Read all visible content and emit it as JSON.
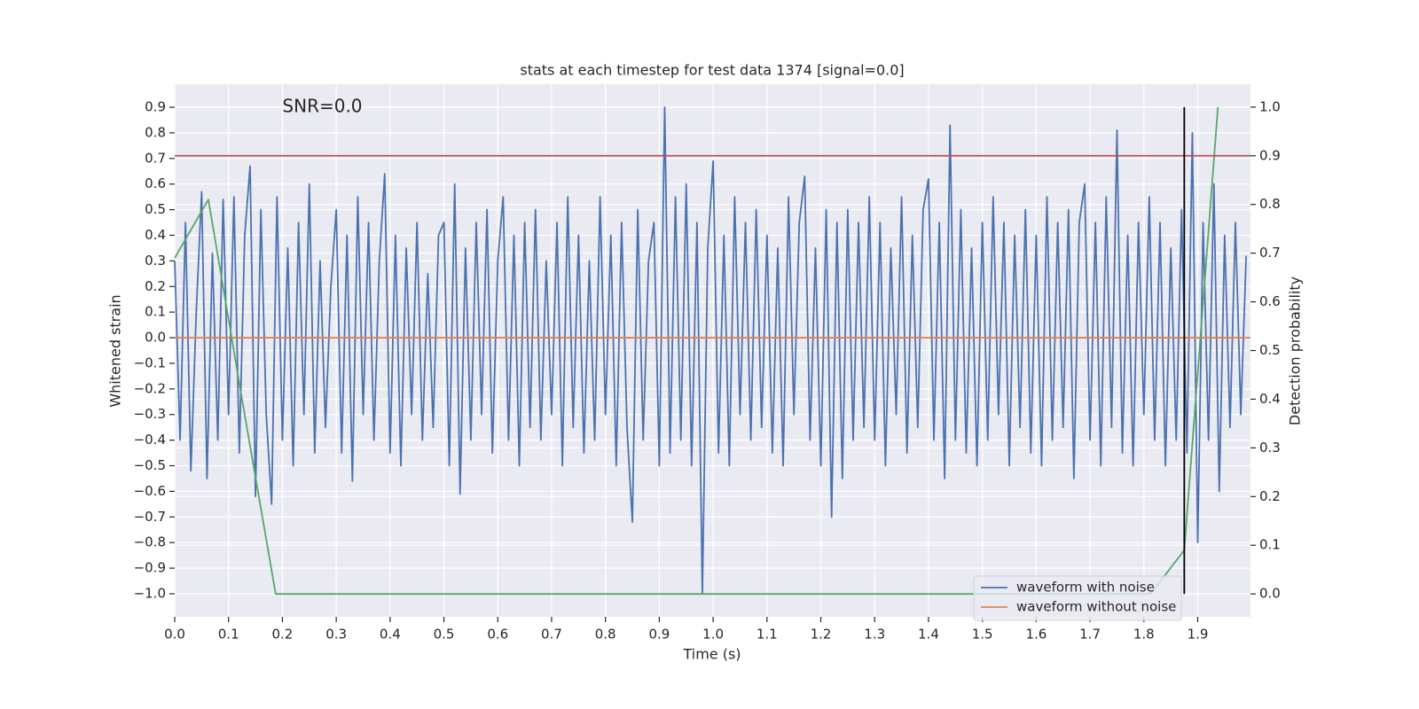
{
  "chart_data": {
    "type": "line",
    "title": "stats at each timestep for test data 1374 [signal=0.0]",
    "xlabel": "Time (s)",
    "ylabel": "Whitened strain",
    "y2label": "Detection probability",
    "annotations": [
      {
        "text": "SNR=0.0",
        "x": 0.2,
        "y": 0.9
      }
    ],
    "xlim": [
      0,
      1.998
    ],
    "ylim": [
      -1.09,
      0.99
    ],
    "y2lim": [
      -0.047,
      1.047
    ],
    "xticks": [
      {
        "value": 0,
        "label": "0.0"
      },
      0.1,
      0.2,
      0.3,
      0.4,
      0.5,
      0.6,
      0.7,
      0.8,
      0.9,
      {
        "value": 1,
        "label": "1.0"
      },
      1.1,
      1.2,
      1.3,
      1.4,
      1.5,
      1.6,
      1.7,
      1.8,
      1.9
    ],
    "yticks": [
      {
        "value": -1,
        "label": "−1.0"
      },
      {
        "value": -0.9,
        "label": "−0.9"
      },
      {
        "value": -0.8,
        "label": "−0.8"
      },
      {
        "value": -0.7,
        "label": "−0.7"
      },
      {
        "value": -0.6,
        "label": "−0.6"
      },
      {
        "value": -0.5,
        "label": "−0.5"
      },
      {
        "value": -0.4,
        "label": "−0.4"
      },
      {
        "value": -0.3,
        "label": "−0.3"
      },
      {
        "value": -0.2,
        "label": "−0.2"
      },
      {
        "value": -0.1,
        "label": "−0.1"
      },
      {
        "value": 0,
        "label": "0.0"
      },
      0.1,
      0.2,
      0.3,
      0.4,
      0.5,
      0.6,
      0.7,
      0.8,
      0.9
    ],
    "y2ticks": [
      {
        "value": 0,
        "label": "0.0"
      },
      0.1,
      0.2,
      0.3,
      0.4,
      0.5,
      0.6,
      0.7,
      0.8,
      0.9,
      {
        "value": 1,
        "label": "1.0"
      }
    ],
    "grid": true,
    "legend": "lower right",
    "series": [
      {
        "name": "waveform with noise",
        "color": "#4c72b0",
        "axis": "y",
        "x": [
          0,
          0.01,
          0.02,
          0.03,
          0.04,
          0.05,
          0.06,
          0.07,
          0.08,
          0.09,
          0.1,
          0.11,
          0.12,
          0.13,
          0.14,
          0.15,
          0.16,
          0.17,
          0.18,
          0.19,
          0.2,
          0.21,
          0.22,
          0.23,
          0.24,
          0.25,
          0.26,
          0.27,
          0.28,
          0.29,
          0.3,
          0.31,
          0.32,
          0.33,
          0.34,
          0.35,
          0.36,
          0.37,
          0.38,
          0.39,
          0.4,
          0.41,
          0.42,
          0.43,
          0.44,
          0.45,
          0.46,
          0.47,
          0.48,
          0.49,
          0.5,
          0.51,
          0.52,
          0.53,
          0.54,
          0.55,
          0.56,
          0.57,
          0.58,
          0.59,
          0.6,
          0.61,
          0.62,
          0.63,
          0.64,
          0.65,
          0.66,
          0.67,
          0.68,
          0.69,
          0.7,
          0.71,
          0.72,
          0.73,
          0.74,
          0.75,
          0.76,
          0.77,
          0.78,
          0.79,
          0.8,
          0.81,
          0.82,
          0.83,
          0.84,
          0.85,
          0.86,
          0.87,
          0.88,
          0.89,
          0.9,
          0.91,
          0.92,
          0.93,
          0.94,
          0.95,
          0.96,
          0.97,
          0.98,
          0.99,
          1,
          1.01,
          1.02,
          1.03,
          1.04,
          1.05,
          1.06,
          1.07,
          1.08,
          1.09,
          1.1,
          1.11,
          1.12,
          1.13,
          1.14,
          1.15,
          1.16,
          1.17,
          1.18,
          1.19,
          1.2,
          1.21,
          1.22,
          1.23,
          1.24,
          1.25,
          1.26,
          1.27,
          1.28,
          1.29,
          1.3,
          1.31,
          1.32,
          1.33,
          1.34,
          1.35,
          1.36,
          1.37,
          1.38,
          1.39,
          1.4,
          1.41,
          1.42,
          1.43,
          1.44,
          1.45,
          1.46,
          1.47,
          1.48,
          1.49,
          1.5,
          1.51,
          1.52,
          1.53,
          1.54,
          1.55,
          1.56,
          1.57,
          1.58,
          1.59,
          1.6,
          1.61,
          1.62,
          1.63,
          1.64,
          1.65,
          1.66,
          1.67,
          1.68,
          1.69,
          1.7,
          1.71,
          1.72,
          1.73,
          1.74,
          1.75,
          1.76,
          1.77,
          1.78,
          1.79,
          1.8,
          1.81,
          1.82,
          1.83,
          1.84,
          1.85,
          1.86,
          1.87,
          1.88,
          1.89,
          1.9,
          1.91,
          1.92,
          1.93,
          1.94,
          1.95,
          1.96,
          1.97,
          1.98,
          1.99
        ],
        "values": [
          0.3,
          -0.4,
          0.45,
          -0.52,
          0.1,
          0.57,
          -0.55,
          0.33,
          -0.4,
          0.54,
          -0.3,
          0.55,
          -0.45,
          0.4,
          0.67,
          -0.62,
          0.5,
          -0.3,
          -0.65,
          0.55,
          -0.4,
          0.35,
          -0.5,
          0.45,
          -0.3,
          0.6,
          -0.45,
          0.3,
          -0.35,
          0.2,
          0.5,
          -0.45,
          0.4,
          -0.56,
          0.55,
          -0.3,
          0.45,
          -0.4,
          0.3,
          0.64,
          -0.45,
          0.4,
          -0.5,
          0.35,
          -0.3,
          0.45,
          -0.4,
          0.25,
          -0.35,
          0.4,
          0.45,
          -0.5,
          0.6,
          -0.61,
          0.35,
          -0.4,
          0.45,
          -0.3,
          0.5,
          -0.45,
          0.3,
          0.55,
          -0.4,
          0.4,
          -0.5,
          0.45,
          -0.35,
          0.5,
          -0.4,
          0.3,
          -0.3,
          0.45,
          -0.5,
          0.55,
          -0.35,
          0.4,
          -0.45,
          0.3,
          -0.4,
          0.55,
          -0.3,
          0.4,
          -0.5,
          0.45,
          -0.35,
          -0.72,
          0.5,
          -0.4,
          0.3,
          0.45,
          -0.5,
          0.9,
          -0.45,
          0.55,
          -0.4,
          0.6,
          -0.5,
          0.45,
          -1.0,
          0.35,
          0.69,
          -0.45,
          0.4,
          -0.5,
          0.55,
          -0.3,
          0.45,
          -0.4,
          0.5,
          -0.35,
          0.4,
          -0.45,
          0.35,
          -0.5,
          0.55,
          -0.3,
          0.45,
          0.63,
          -0.4,
          0.35,
          -0.5,
          0.5,
          -0.7,
          0.45,
          -0.55,
          0.5,
          -0.4,
          0.45,
          -0.35,
          0.55,
          -0.4,
          0.45,
          -0.5,
          0.35,
          -0.3,
          0.55,
          -0.45,
          0.4,
          -0.35,
          0.5,
          0.62,
          -0.4,
          0.45,
          -0.55,
          0.83,
          -0.4,
          0.5,
          -0.45,
          0.35,
          -0.5,
          0.45,
          -0.4,
          0.55,
          -0.3,
          0.45,
          -0.5,
          0.4,
          -0.35,
          0.5,
          -0.45,
          0.4,
          -0.5,
          0.55,
          -0.4,
          0.45,
          -0.35,
          0.5,
          -0.55,
          0.45,
          0.6,
          -0.4,
          0.45,
          -0.5,
          0.55,
          -0.35,
          0.81,
          -0.45,
          0.4,
          -0.5,
          0.45,
          -0.3,
          0.55,
          -0.4,
          0.45,
          -0.5,
          0.35,
          -0.4,
          0.5,
          -0.45,
          0.8,
          -0.8,
          0.45,
          -0.4,
          0.6,
          -0.6,
          0.4,
          -0.35,
          0.45,
          -0.3,
          0.32
        ]
      },
      {
        "name": "waveform without noise",
        "color": "#dd8452",
        "axis": "y",
        "x": [
          0,
          1.998
        ],
        "values": [
          0,
          0
        ]
      },
      {
        "color": "#55a868",
        "axis": "y2",
        "x": [
          0,
          0.0625,
          0.125,
          0.1875,
          0.25,
          0.5,
          1.0,
          1.5,
          1.8125,
          1.875,
          1.9375
        ],
        "values": [
          0.69,
          0.81,
          0.4,
          0.0,
          0.0,
          0.0,
          0.0,
          0.0,
          0.0,
          0.09,
          1.0
        ]
      }
    ],
    "hlines": [
      {
        "value": 0.9,
        "axis": "y2",
        "color": "#c44e52"
      }
    ],
    "vlines": [
      {
        "x": 1.875,
        "ymin": 0,
        "ymax": 1,
        "axis": "y2",
        "color": "#000000"
      }
    ]
  }
}
